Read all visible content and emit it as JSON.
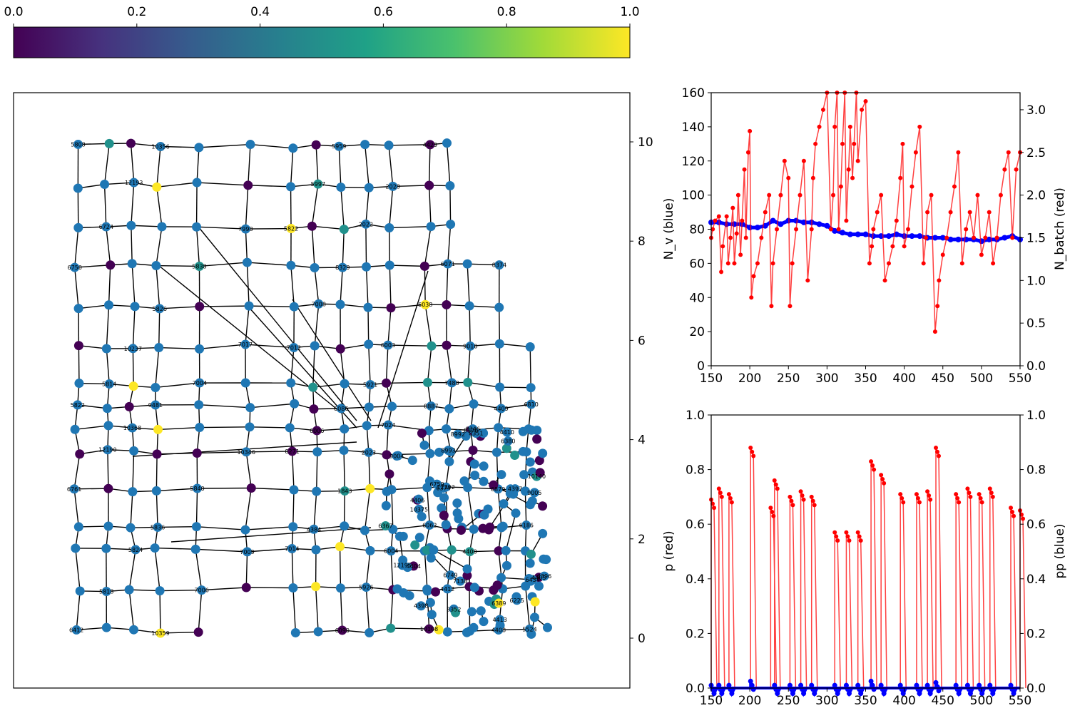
{
  "colorbar": {
    "ticks": [
      "0.0",
      "0.2",
      "0.4",
      "0.6",
      "0.8",
      "1.0"
    ],
    "cmap": [
      "#440154",
      "#46327e",
      "#365c8d",
      "#277f8e",
      "#1fa187",
      "#4ac16d",
      "#a0da39",
      "#fde725"
    ]
  },
  "colors": {
    "node_blue": "#1f77b4",
    "node_purple": "#440154",
    "node_teal": "#21918c",
    "node_yellow": "#fde725",
    "red": "#ff0000",
    "blue": "#0000ff"
  },
  "chart_data": [
    {
      "type": "network",
      "ylim": [
        -1,
        11
      ],
      "yticks": [
        "0",
        "2",
        "4",
        "6",
        "8",
        "10"
      ],
      "grid": false,
      "node_colors": "viridis, values 0.0–1.0 (blue nodes mostly unscored)",
      "node_labels": [
        "5808",
        "5822",
        "6412",
        "5814",
        "5818",
        "10237",
        "5824",
        "5826",
        "5836",
        "5838",
        "5840",
        "7998",
        "10346",
        "5822",
        "8271",
        "5997",
        "6006",
        "5959",
        "6086",
        "6090",
        "5921",
        "5926",
        "6003",
        "6004",
        "6038",
        "6062",
        "6071",
        "12392",
        "9010",
        "4400",
        "4409",
        "4408",
        "6186",
        "10375",
        "8992",
        "8993",
        "9004",
        "9005",
        "6225",
        "4398",
        "4406",
        "4405",
        "4404",
        "6374",
        "6434",
        "6380",
        "6389",
        "10140",
        "4397",
        "4396",
        "6367",
        "6749",
        "6759",
        "6750",
        "6761",
        "6724",
        "12190",
        "12193",
        "10368",
        "10356",
        "9481",
        "10359",
        "7004",
        "7006",
        "7017",
        "7009",
        "7012",
        "7014",
        "7008",
        "4384",
        "8329",
        "1843",
        "2022",
        "2023",
        "2028",
        "7024",
        "4429",
        "8887",
        "10108",
        "7488",
        "4412",
        "8376",
        "8374",
        "6879",
        "6810",
        "5524",
        "4413",
        "7138",
        "8346",
        "8352",
        "8351",
        "12195",
        "4410"
      ]
    },
    {
      "type": "line",
      "title": "",
      "xlabel": "",
      "ylabel": "N_v (blue)",
      "y2label": "N_batch (red)",
      "xlim": [
        150,
        550
      ],
      "ylim": [
        0,
        160
      ],
      "y2lim": [
        0,
        3.2
      ],
      "xticks": [
        "150",
        "200",
        "250",
        "300",
        "350",
        "400",
        "450",
        "500",
        "550"
      ],
      "yticks": [
        "0",
        "20",
        "40",
        "60",
        "80",
        "100",
        "120",
        "140",
        "160"
      ],
      "y2ticks": [
        "0.0",
        "0.5",
        "1.0",
        "1.5",
        "2.0",
        "2.5",
        "3.0"
      ],
      "series": [
        {
          "color": "#0000ff",
          "axis": "left",
          "x": [
            150,
            160,
            170,
            180,
            190,
            200,
            210,
            220,
            230,
            240,
            250,
            260,
            270,
            280,
            290,
            300,
            310,
            320,
            330,
            340,
            350,
            360,
            370,
            380,
            390,
            400,
            410,
            420,
            430,
            440,
            450,
            460,
            470,
            480,
            490,
            500,
            510,
            520,
            530,
            540,
            550
          ],
          "y": [
            84,
            84,
            83,
            83,
            83,
            81,
            81,
            82,
            85,
            83,
            85,
            85,
            84,
            84,
            83,
            82,
            79,
            78,
            77,
            77,
            77,
            76,
            76,
            76,
            77,
            76,
            76,
            76,
            75,
            75,
            75,
            74,
            74,
            74,
            74,
            73,
            74,
            74,
            75,
            76,
            74
          ]
        },
        {
          "color": "#ff0000",
          "axis": "right",
          "x": [
            150,
            152,
            155,
            160,
            163,
            165,
            170,
            172,
            175,
            178,
            180,
            183,
            185,
            188,
            190,
            193,
            195,
            198,
            200,
            202,
            205,
            210,
            215,
            220,
            225,
            228,
            230,
            235,
            240,
            245,
            250,
            252,
            255,
            260,
            265,
            270,
            275,
            280,
            282,
            285,
            290,
            295,
            300,
            305,
            308,
            310,
            313,
            315,
            318,
            320,
            323,
            325,
            328,
            330,
            333,
            335,
            338,
            340,
            345,
            350,
            355,
            358,
            360,
            365,
            370,
            375,
            380,
            385,
            390,
            395,
            398,
            400,
            405,
            410,
            415,
            420,
            425,
            428,
            430,
            435,
            440,
            443,
            445,
            450,
            455,
            460,
            465,
            470,
            475,
            480,
            485,
            490,
            495,
            500,
            505,
            510,
            515,
            520,
            525,
            530,
            535,
            540,
            545,
            550
          ],
          "y": [
            1.5,
            1.6,
            1.7,
            1.75,
            1.1,
            1.4,
            1.75,
            1.2,
            1.5,
            1.85,
            1.2,
            1.55,
            2.0,
            1.3,
            1.7,
            2.3,
            1.5,
            2.5,
            2.75,
            0.8,
            1.05,
            1.2,
            1.5,
            1.8,
            2.0,
            0.7,
            1.2,
            1.6,
            2.0,
            2.4,
            2.2,
            0.7,
            1.2,
            1.6,
            2.0,
            2.4,
            1.0,
            1.6,
            2.2,
            2.6,
            2.8,
            3.0,
            3.2,
            1.6,
            2.0,
            2.8,
            3.2,
            1.6,
            2.1,
            2.6,
            3.2,
            1.7,
            2.3,
            2.8,
            2.2,
            2.6,
            3.2,
            2.4,
            3.0,
            3.1,
            1.2,
            1.4,
            1.6,
            1.8,
            2.0,
            1.0,
            1.2,
            1.4,
            1.7,
            2.2,
            2.6,
            1.4,
            1.6,
            2.1,
            2.5,
            2.8,
            1.2,
            1.5,
            1.8,
            2.0,
            0.4,
            0.7,
            1.0,
            1.3,
            1.5,
            1.8,
            2.1,
            2.5,
            1.2,
            1.6,
            1.8,
            1.5,
            2.0,
            1.3,
            1.5,
            1.8,
            1.2,
            1.5,
            2.0,
            2.3,
            2.5,
            1.5,
            2.3,
            2.5
          ]
        }
      ]
    },
    {
      "type": "line",
      "title": "",
      "xlabel": "",
      "ylabel": "p (red)",
      "y2label": "pp (blue)",
      "xlim": [
        150,
        550
      ],
      "ylim": [
        0,
        1
      ],
      "y2lim": [
        0,
        1
      ],
      "xticks": [
        "150",
        "200",
        "250",
        "300",
        "350",
        "400",
        "450",
        "500",
        "550"
      ],
      "yticks": [
        "0.0",
        "0.2",
        "0.4",
        "0.6",
        "0.8",
        "1.0"
      ],
      "y2ticks": [
        "0.0",
        "0.2",
        "0.4",
        "0.6",
        "0.8",
        "1.0"
      ],
      "series": [
        {
          "color": "#ff0000",
          "axis": "left",
          "spikes": [
            [
              150,
              0.69
            ],
            [
              160,
              0.73
            ],
            [
              173,
              0.71
            ],
            [
              201,
              0.88
            ],
            [
              227,
              0.66
            ],
            [
              232,
              0.76
            ],
            [
              252,
              0.7
            ],
            [
              266,
              0.72
            ],
            [
              280,
              0.7
            ],
            [
              310,
              0.57
            ],
            [
              325,
              0.57
            ],
            [
              340,
              0.57
            ],
            [
              357,
              0.83
            ],
            [
              370,
              0.78
            ],
            [
              395,
              0.71
            ],
            [
              416,
              0.71
            ],
            [
              430,
              0.72
            ],
            [
              441,
              0.88
            ],
            [
              467,
              0.71
            ],
            [
              482,
              0.73
            ],
            [
              497,
              0.71
            ],
            [
              511,
              0.73
            ],
            [
              538,
              0.66
            ],
            [
              550,
              0.65
            ]
          ]
        },
        {
          "color": "#0000ff",
          "axis": "right",
          "spikes": [
            [
              150,
              0.01
            ],
            [
              160,
              0.01
            ],
            [
              173,
              0.01
            ],
            [
              201,
              0.025
            ],
            [
              232,
              0.01
            ],
            [
              252,
              0.01
            ],
            [
              266,
              0.01
            ],
            [
              280,
              0.01
            ],
            [
              310,
              0.01
            ],
            [
              325,
              0.01
            ],
            [
              340,
              0.01
            ],
            [
              357,
              0.025
            ],
            [
              370,
              0.01
            ],
            [
              395,
              0.01
            ],
            [
              416,
              0.01
            ],
            [
              430,
              0.01
            ],
            [
              441,
              0.02
            ],
            [
              467,
              0.01
            ],
            [
              482,
              0.01
            ],
            [
              497,
              0.01
            ],
            [
              511,
              0.01
            ],
            [
              538,
              0.01
            ]
          ]
        }
      ]
    }
  ]
}
